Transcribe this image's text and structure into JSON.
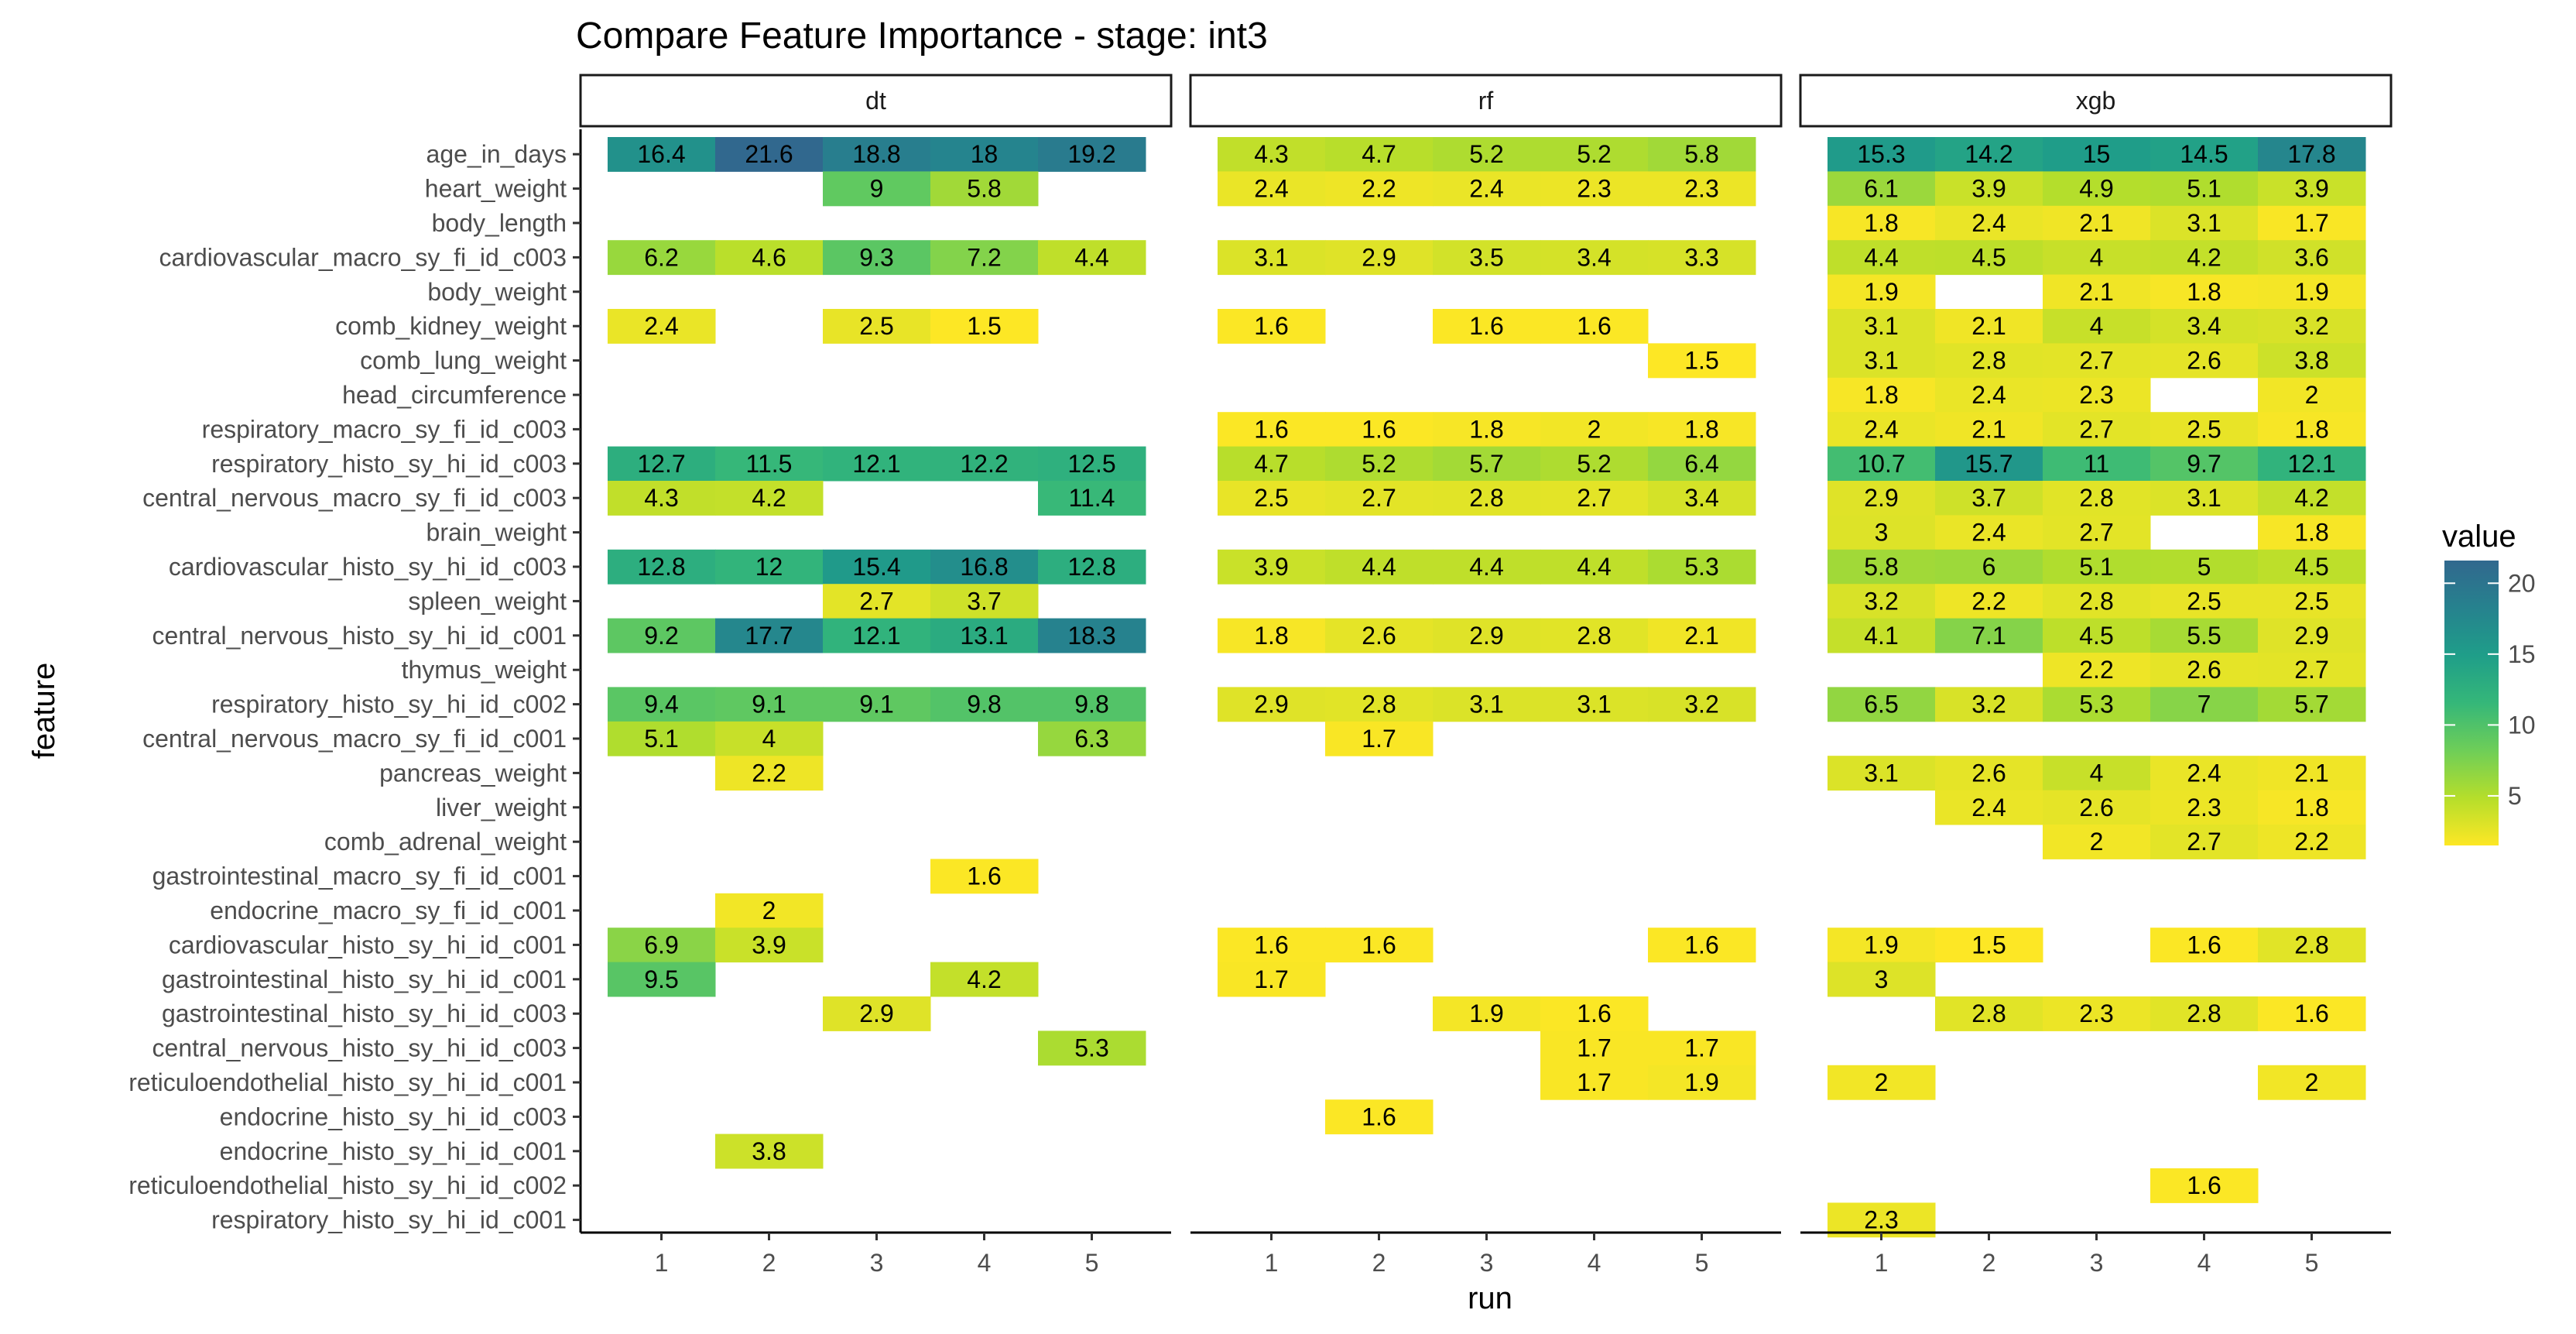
{
  "chart_data": {
    "type": "heatmap",
    "title": "Compare Feature Importance - stage: int3",
    "xlabel": "run",
    "ylabel": "feature",
    "x": [
      1,
      2,
      3,
      4,
      5
    ],
    "facets": [
      "dt",
      "rf",
      "xgb"
    ],
    "features": [
      "age_in_days",
      "heart_weight",
      "body_length",
      "cardiovascular_macro_sy_fi_id_c003",
      "body_weight",
      "comb_kidney_weight",
      "comb_lung_weight",
      "head_circumference",
      "respiratory_macro_sy_fi_id_c003",
      "respiratory_histo_sy_hi_id_c003",
      "central_nervous_macro_sy_fi_id_c003",
      "brain_weight",
      "cardiovascular_histo_sy_hi_id_c003",
      "spleen_weight",
      "central_nervous_histo_sy_hi_id_c001",
      "thymus_weight",
      "respiratory_histo_sy_hi_id_c002",
      "central_nervous_macro_sy_fi_id_c001",
      "pancreas_weight",
      "liver_weight",
      "comb_adrenal_weight",
      "gastrointestinal_macro_sy_fi_id_c001",
      "endocrine_macro_sy_fi_id_c001",
      "cardiovascular_histo_sy_hi_id_c001",
      "gastrointestinal_histo_sy_hi_id_c001",
      "gastrointestinal_histo_sy_hi_id_c003",
      "central_nervous_histo_sy_hi_id_c003",
      "reticuloendothelial_histo_sy_hi_id_c001",
      "endocrine_histo_sy_hi_id_c003",
      "endocrine_histo_sy_hi_id_c001",
      "reticuloendothelial_histo_sy_hi_id_c002",
      "respiratory_histo_sy_hi_id_c001"
    ],
    "values": {
      "dt": [
        [
          16.4,
          21.6,
          18.8,
          18,
          19.2
        ],
        [
          null,
          null,
          9,
          5.8,
          null
        ],
        [
          null,
          null,
          null,
          null,
          null
        ],
        [
          6.2,
          4.6,
          9.3,
          7.2,
          4.4
        ],
        [
          null,
          null,
          null,
          null,
          null
        ],
        [
          2.4,
          null,
          2.5,
          1.5,
          null
        ],
        [
          null,
          null,
          null,
          null,
          null
        ],
        [
          null,
          null,
          null,
          null,
          null
        ],
        [
          null,
          null,
          null,
          null,
          null
        ],
        [
          12.7,
          11.5,
          12.1,
          12.2,
          12.5
        ],
        [
          4.3,
          4.2,
          null,
          null,
          11.4
        ],
        [
          null,
          null,
          null,
          null,
          null
        ],
        [
          12.8,
          12,
          15.4,
          16.8,
          12.8
        ],
        [
          null,
          null,
          2.7,
          3.7,
          null
        ],
        [
          9.2,
          17.7,
          12.1,
          13.1,
          18.3
        ],
        [
          null,
          null,
          null,
          null,
          null
        ],
        [
          9.4,
          9.1,
          9.1,
          9.8,
          9.8
        ],
        [
          5.1,
          4,
          null,
          null,
          6.3
        ],
        [
          null,
          2.2,
          null,
          null,
          null
        ],
        [
          null,
          null,
          null,
          null,
          null
        ],
        [
          null,
          null,
          null,
          null,
          null
        ],
        [
          null,
          null,
          null,
          1.6,
          null
        ],
        [
          null,
          2,
          null,
          null,
          null
        ],
        [
          6.9,
          3.9,
          null,
          null,
          null
        ],
        [
          9.5,
          null,
          null,
          4.2,
          null
        ],
        [
          null,
          null,
          2.9,
          null,
          null
        ],
        [
          null,
          null,
          null,
          null,
          5.3
        ],
        [
          null,
          null,
          null,
          null,
          null
        ],
        [
          null,
          null,
          null,
          null,
          null
        ],
        [
          null,
          3.8,
          null,
          null,
          null
        ],
        [
          null,
          null,
          null,
          null,
          null
        ],
        [
          null,
          null,
          null,
          null,
          null
        ]
      ],
      "rf": [
        [
          4.3,
          4.7,
          5.2,
          5.2,
          5.8
        ],
        [
          2.4,
          2.2,
          2.4,
          2.3,
          2.3
        ],
        [
          null,
          null,
          null,
          null,
          null
        ],
        [
          3.1,
          2.9,
          3.5,
          3.4,
          3.3
        ],
        [
          null,
          null,
          null,
          null,
          null
        ],
        [
          1.6,
          null,
          1.6,
          1.6,
          null
        ],
        [
          null,
          null,
          null,
          null,
          1.5
        ],
        [
          null,
          null,
          null,
          null,
          null
        ],
        [
          1.6,
          1.6,
          1.8,
          2,
          1.8
        ],
        [
          4.7,
          5.2,
          5.7,
          5.2,
          6.4
        ],
        [
          2.5,
          2.7,
          2.8,
          2.7,
          3.4
        ],
        [
          null,
          null,
          null,
          null,
          null
        ],
        [
          3.9,
          4.4,
          4.4,
          4.4,
          5.3
        ],
        [
          null,
          null,
          null,
          null,
          null
        ],
        [
          1.8,
          2.6,
          2.9,
          2.8,
          2.1
        ],
        [
          null,
          null,
          null,
          null,
          null
        ],
        [
          2.9,
          2.8,
          3.1,
          3.1,
          3.2
        ],
        [
          null,
          1.7,
          null,
          null,
          null
        ],
        [
          null,
          null,
          null,
          null,
          null
        ],
        [
          null,
          null,
          null,
          null,
          null
        ],
        [
          null,
          null,
          null,
          null,
          null
        ],
        [
          null,
          null,
          null,
          null,
          null
        ],
        [
          null,
          null,
          null,
          null,
          null
        ],
        [
          1.6,
          1.6,
          null,
          null,
          1.6
        ],
        [
          1.7,
          null,
          null,
          null,
          null
        ],
        [
          null,
          null,
          1.9,
          1.6,
          null
        ],
        [
          null,
          null,
          null,
          1.7,
          1.7
        ],
        [
          null,
          null,
          null,
          1.7,
          1.9
        ],
        [
          null,
          1.6,
          null,
          null,
          null
        ],
        [
          null,
          null,
          null,
          null,
          null
        ],
        [
          null,
          null,
          null,
          null,
          null
        ],
        [
          null,
          null,
          null,
          null,
          null
        ]
      ],
      "xgb": [
        [
          15.3,
          14.2,
          15,
          14.5,
          17.8
        ],
        [
          6.1,
          3.9,
          4.9,
          5.1,
          3.9
        ],
        [
          1.8,
          2.4,
          2.1,
          3.1,
          1.7
        ],
        [
          4.4,
          4.5,
          4,
          4.2,
          3.6
        ],
        [
          1.9,
          null,
          2.1,
          1.8,
          1.9
        ],
        [
          3.1,
          2.1,
          4,
          3.4,
          3.2
        ],
        [
          3.1,
          2.8,
          2.7,
          2.6,
          3.8
        ],
        [
          1.8,
          2.4,
          2.3,
          null,
          2
        ],
        [
          2.4,
          2.1,
          2.7,
          2.5,
          1.8
        ],
        [
          10.7,
          15.7,
          11,
          9.7,
          12.1
        ],
        [
          2.9,
          3.7,
          2.8,
          3.1,
          4.2
        ],
        [
          3,
          2.4,
          2.7,
          null,
          1.8
        ],
        [
          5.8,
          6,
          5.1,
          5,
          4.5
        ],
        [
          3.2,
          2.2,
          2.8,
          2.5,
          2.5
        ],
        [
          4.1,
          7.1,
          4.5,
          5.5,
          2.9
        ],
        [
          null,
          null,
          2.2,
          2.6,
          2.7
        ],
        [
          6.5,
          3.2,
          5.3,
          7,
          5.7
        ],
        [
          null,
          null,
          null,
          null,
          null
        ],
        [
          3.1,
          2.6,
          4,
          2.4,
          2.1
        ],
        [
          null,
          2.4,
          2.6,
          2.3,
          1.8
        ],
        [
          null,
          null,
          2,
          2.7,
          2.2
        ],
        [
          null,
          null,
          null,
          null,
          null
        ],
        [
          null,
          null,
          null,
          null,
          null
        ],
        [
          1.9,
          1.5,
          null,
          1.6,
          2.8
        ],
        [
          3,
          null,
          null,
          null,
          null
        ],
        [
          null,
          2.8,
          2.3,
          2.8,
          1.6
        ],
        [
          null,
          null,
          null,
          null,
          null
        ],
        [
          2,
          null,
          null,
          null,
          2
        ],
        [
          null,
          null,
          null,
          null,
          null
        ],
        [
          null,
          null,
          null,
          null,
          null
        ],
        [
          null,
          null,
          null,
          1.6,
          null
        ],
        [
          2.3,
          null,
          null,
          null,
          null
        ]
      ]
    },
    "legend": {
      "title": "value",
      "ticks": [
        5,
        10,
        15,
        20
      ],
      "range": [
        1.5,
        21.6
      ],
      "colormap": "viridis (reversed)",
      "position": "right"
    },
    "grid": false
  }
}
